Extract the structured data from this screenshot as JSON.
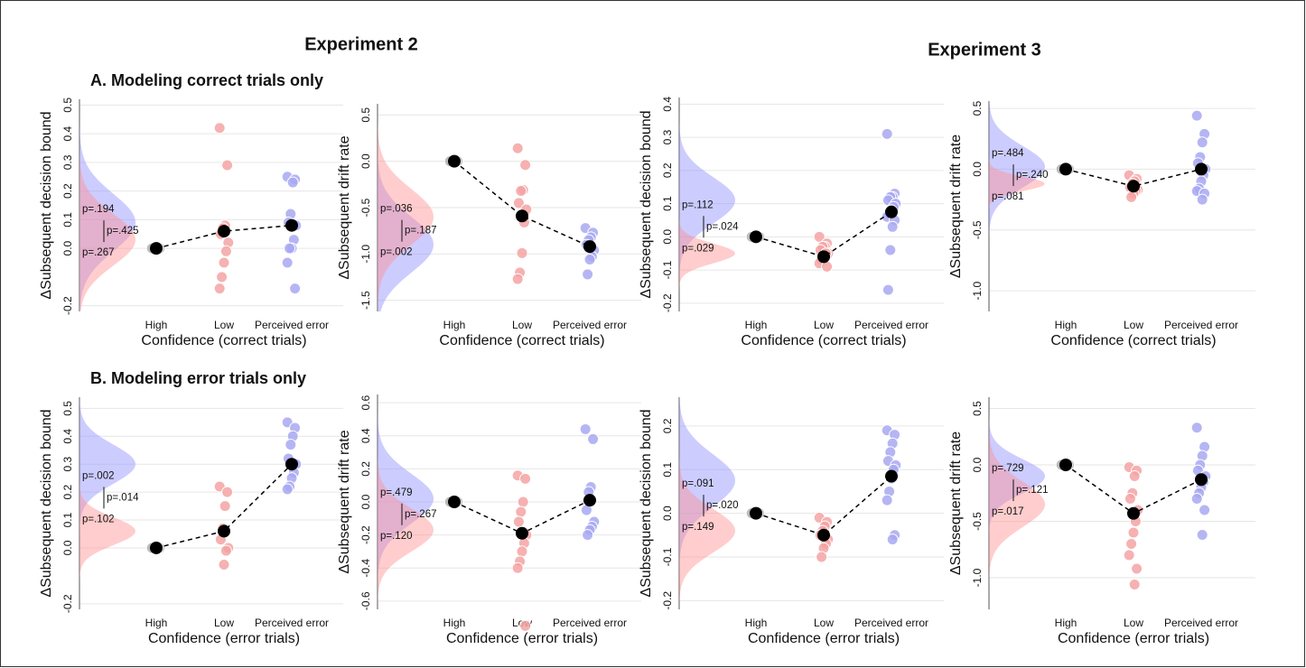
{
  "headings": {
    "experiment_2": "Experiment 2",
    "experiment_3": "Experiment 3",
    "section_a": "A. Modeling correct trials only",
    "section_b": "B. Modeling error trials only"
  },
  "chart_data": [
    {
      "type": "dotplot",
      "ylabel": "ΔSubsequent decision bound",
      "xlabel": "Confidence (correct trials)",
      "categories": [
        "High",
        "Low",
        "Perceived error"
      ],
      "ylim": [
        -0.22,
        0.52
      ],
      "yticks": [
        0.5,
        0.4,
        0.3,
        0.2,
        0.1,
        {
          "value": 0,
          "label": "0.0"
        },
        -0.2
      ],
      "grid": true,
      "colors": [
        "#b0b0b0",
        "#f5a3a3",
        "#a8a8f2"
      ],
      "means": [
        0,
        0.06,
        0.08
      ],
      "points": [
        [
          0,
          0,
          0
        ],
        [
          0.42,
          0.29,
          0.08,
          0.07,
          0.05,
          0.02,
          -0.01,
          -0.05,
          -0.1,
          -0.14
        ],
        [
          0.25,
          0.24,
          0.23,
          0.12,
          0.09,
          0.08,
          0.03,
          0,
          0,
          -0.05,
          -0.14
        ]
      ],
      "densities": [
        {
          "color": "#8f8fff",
          "mean": 0.09,
          "sd": 0.1
        },
        {
          "color": "#ff9090",
          "mean": 0.03,
          "sd": 0.09
        }
      ],
      "annotations": [
        "p=.194",
        "p=.425",
        "p=.267"
      ]
    },
    {
      "type": "dotplot",
      "ylabel": "ΔSubsequent drift rate",
      "xlabel": "Confidence (correct trials)",
      "categories": [
        "High",
        "Low",
        "Perceived error"
      ],
      "ylim": [
        -1.62,
        0.62
      ],
      "yticks": [
        0.5,
        {
          "value": 0,
          "label": "0.0"
        },
        -0.5,
        {
          "value": -1,
          "label": "-1.0"
        },
        -1.5
      ],
      "grid": true,
      "colors": [
        "#b0b0b0",
        "#f5a3a3",
        "#a8a8f2"
      ],
      "means": [
        0,
        -0.59,
        -0.92
      ],
      "points": [
        [
          0,
          0,
          0
        ],
        [
          0.14,
          -0.04,
          -0.31,
          -0.32,
          -0.45,
          -0.52,
          -0.66,
          -0.99,
          -1.2,
          -1.27
        ],
        [
          -0.72,
          -0.77,
          -0.82,
          -0.85,
          -0.9,
          -0.96,
          -1.03,
          -1.06,
          -1.22
        ]
      ],
      "densities": [
        {
          "color": "#8f8fff",
          "mean": -0.9,
          "sd": 0.3
        },
        {
          "color": "#ff9090",
          "mean": -0.6,
          "sd": 0.3
        }
      ],
      "annotations": [
        "p=.036",
        "p=.187",
        "p=.002"
      ]
    },
    {
      "type": "dotplot",
      "ylabel": "ΔSubsequent decision bound",
      "xlabel": "Confidence (correct trials)",
      "categories": [
        "High",
        "Low",
        "Perceived error"
      ],
      "ylim": [
        -0.225,
        0.42
      ],
      "yticks": [
        0.4,
        0.3,
        0.2,
        0.1,
        {
          "value": 0,
          "label": "0.0"
        },
        -0.1,
        -0.2
      ],
      "grid": true,
      "colors": [
        "#b0b0b0",
        "#f5a3a3",
        "#a8a8f2"
      ],
      "means": [
        0,
        -0.06,
        0.075
      ],
      "points": [
        [
          0,
          0,
          0
        ],
        [
          0,
          -0.02,
          -0.03,
          -0.03,
          -0.04,
          -0.05,
          -0.05,
          -0.06,
          -0.07,
          -0.08,
          -0.09
        ],
        [
          0.31,
          0.13,
          0.12,
          0.12,
          0.11,
          0.1,
          0.09,
          0.08,
          0.07,
          0.06,
          0.05,
          0.03,
          -0.04,
          -0.16
        ]
      ],
      "densities": [
        {
          "color": "#8f8fff",
          "mean": 0.11,
          "sd": 0.07
        },
        {
          "color": "#ff9090",
          "mean": -0.05,
          "sd": 0.03
        }
      ],
      "annotations": [
        "p=.112",
        "p=.024",
        "p=.029"
      ]
    },
    {
      "type": "dotplot",
      "ylabel": "ΔSubsequent drift rate",
      "xlabel": "Confidence (correct trials)",
      "categories": [
        "High",
        "Low",
        "Perceived error"
      ],
      "ylim": [
        -1.17,
        0.56
      ],
      "yticks": [
        0.5,
        {
          "value": 0,
          "label": "0.0"
        },
        -0.5,
        {
          "value": -1,
          "label": "-1.0"
        }
      ],
      "grid": true,
      "colors": [
        "#b0b0b0",
        "#f5a3a3",
        "#a8a8f2"
      ],
      "means": [
        0,
        -0.14,
        0
      ],
      "points": [
        [
          0,
          0,
          0
        ],
        [
          -0.05,
          -0.08,
          -0.1,
          -0.12,
          -0.15,
          -0.17,
          -0.18,
          -0.2,
          -0.23
        ],
        [
          0.44,
          0.29,
          0.22,
          0.1,
          0.05,
          0,
          -0.05,
          -0.1,
          -0.16,
          -0.18,
          -0.2,
          -0.25
        ]
      ],
      "densities": [
        {
          "color": "#8f8fff",
          "mean": 0.02,
          "sd": 0.17
        },
        {
          "color": "#ff9090",
          "mean": -0.12,
          "sd": 0.06
        }
      ],
      "annotations": [
        "p=.484",
        "p=.240",
        "p=.081"
      ]
    },
    {
      "type": "dotplot",
      "ylabel": "ΔSubsequent decision bound",
      "xlabel": "Confidence (error trials)",
      "categories": [
        "High",
        "Low",
        "Perceived error"
      ],
      "ylim": [
        -0.22,
        0.54
      ],
      "yticks": [
        0.5,
        0.4,
        0.3,
        0.2,
        0.1,
        {
          "value": 0,
          "label": "0.0"
        },
        -0.2
      ],
      "grid": true,
      "colors": [
        "#b0b0b0",
        "#f5a3a3",
        "#a8a8f2"
      ],
      "means": [
        0,
        0.06,
        0.3
      ],
      "points": [
        [
          0,
          0,
          0
        ],
        [
          0.22,
          0.2,
          0.15,
          0.07,
          0.03,
          0,
          -0.01,
          -0.06
        ],
        [
          0.45,
          0.43,
          0.4,
          0.37,
          0.32,
          0.3,
          0.27,
          0.25,
          0.22,
          0.21
        ]
      ],
      "densities": [
        {
          "color": "#8f8fff",
          "mean": 0.3,
          "sd": 0.07
        },
        {
          "color": "#ff9090",
          "mean": 0.06,
          "sd": 0.05
        }
      ],
      "annotations": [
        "p=.002",
        "p=.014",
        "p=.102"
      ]
    },
    {
      "type": "dotplot",
      "ylabel": "ΔSubsequent drift rate",
      "xlabel": "Confidence (error trials)",
      "categories": [
        "High",
        "Low",
        "Perceived error"
      ],
      "ylim": [
        -0.65,
        0.65
      ],
      "yticks": [
        0.6,
        0.4,
        0.2,
        {
          "value": 0,
          "label": "0.0"
        },
        -0.2,
        -0.4,
        -0.6
      ],
      "grid": true,
      "colors": [
        "#b0b0b0",
        "#f5a3a3",
        "#a8a8f2"
      ],
      "means": [
        0,
        -0.19,
        0.01
      ],
      "points": [
        [
          0,
          0,
          0
        ],
        [
          0.16,
          0.14,
          0,
          -0.06,
          -0.12,
          -0.2,
          -0.25,
          -0.3,
          -0.36,
          -0.4,
          -0.75
        ],
        [
          0.44,
          0.38,
          0.09,
          0.06,
          -0.05,
          -0.12,
          -0.15,
          -0.17,
          -0.2
        ]
      ],
      "densities": [
        {
          "color": "#8f8fff",
          "mean": 0.02,
          "sd": 0.15
        },
        {
          "color": "#ff9090",
          "mean": -0.17,
          "sd": 0.13
        }
      ],
      "annotations": [
        "p=.479",
        "p=.267",
        "p=.120"
      ]
    },
    {
      "type": "dotplot",
      "ylabel": "ΔSubsequent decision bound",
      "xlabel": "Confidence (error trials)",
      "categories": [
        "High",
        "Low",
        "Perceived error"
      ],
      "ylim": [
        -0.22,
        0.266
      ],
      "yticks": [
        0.2,
        0.1,
        {
          "value": 0,
          "label": "0.0"
        },
        -0.1,
        -0.2
      ],
      "grid": true,
      "colors": [
        "#b0b0b0",
        "#f5a3a3",
        "#a8a8f2"
      ],
      "means": [
        0,
        -0.05,
        0.085
      ],
      "points": [
        [
          0,
          0,
          0
        ],
        [
          -0.01,
          -0.02,
          -0.03,
          -0.04,
          -0.05,
          -0.06,
          -0.07,
          -0.08,
          -0.1
        ],
        [
          0.19,
          0.18,
          0.16,
          0.14,
          0.12,
          0.11,
          0.1,
          0.08,
          0.05,
          0.03,
          -0.05,
          -0.06
        ]
      ],
      "densities": [
        {
          "color": "#8f8fff",
          "mean": 0.075,
          "sd": 0.06
        },
        {
          "color": "#ff9090",
          "mean": -0.04,
          "sd": 0.05
        }
      ],
      "annotations": [
        "p=.091",
        "p=.020",
        "p=.149"
      ]
    },
    {
      "type": "dotplot",
      "ylabel": "ΔSubsequent drift rate",
      "xlabel": "Confidence (error trials)",
      "categories": [
        "High",
        "Low",
        "Perceived error"
      ],
      "ylim": [
        -1.28,
        0.6
      ],
      "yticks": [
        0.5,
        {
          "value": 0,
          "label": "0.0"
        },
        -0.5,
        {
          "value": -1,
          "label": "-1.0"
        }
      ],
      "grid": true,
      "colors": [
        "#b0b0b0",
        "#f5a3a3",
        "#a8a8f2"
      ],
      "means": [
        0,
        -0.43,
        -0.13
      ],
      "points": [
        [
          0,
          0,
          0
        ],
        [
          -0.02,
          -0.05,
          -0.1,
          -0.25,
          -0.3,
          -0.4,
          -0.5,
          -0.6,
          -0.7,
          -0.8,
          -0.92,
          -1.06
        ],
        [
          0.33,
          0.16,
          0.08,
          0,
          -0.05,
          -0.1,
          -0.15,
          -0.2,
          -0.25,
          -0.3,
          -0.4,
          -0.62
        ]
      ],
      "densities": [
        {
          "color": "#8f8fff",
          "mean": -0.1,
          "sd": 0.15
        },
        {
          "color": "#ff9090",
          "mean": -0.35,
          "sd": 0.2
        }
      ],
      "annotations": [
        "p=.729",
        "p=.121",
        "p=.017"
      ]
    }
  ]
}
